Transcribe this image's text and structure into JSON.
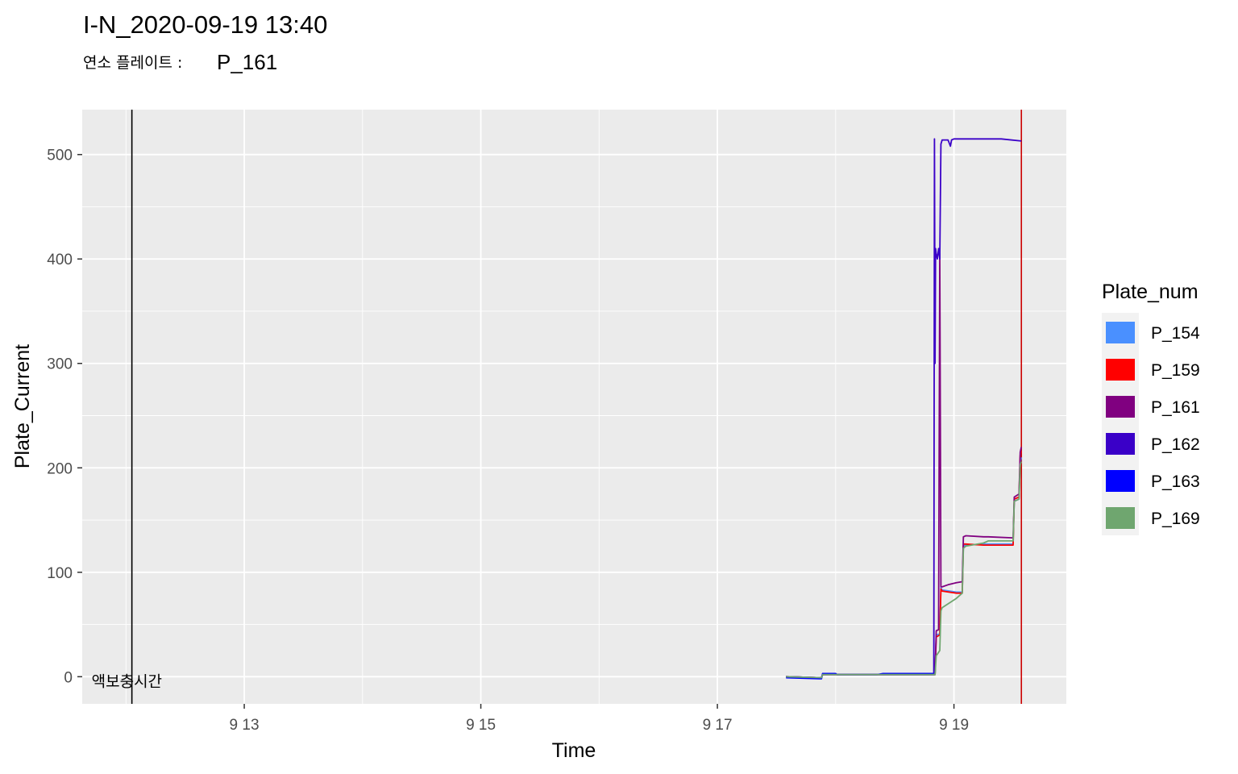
{
  "chart_data": {
    "type": "line",
    "title": "I-N_2020-09-19 13:40",
    "subtitle_prefix": "연소 플레이트 :",
    "subtitle_value": "P_161",
    "xlabel": "Time",
    "ylabel": "Plate_Current",
    "x_unit": "days (September 2020)",
    "xlim": [
      11.63,
      19.95
    ],
    "ylim": [
      -26,
      543
    ],
    "x_ticks": [
      13,
      15,
      17,
      19
    ],
    "x_tick_labels": [
      "9 13",
      "9 15",
      "9 17",
      "9 19"
    ],
    "y_ticks": [
      0,
      100,
      200,
      300,
      400,
      500
    ],
    "y_tick_labels": [
      "0",
      "100",
      "200",
      "300",
      "400",
      "500"
    ],
    "grid": true,
    "legend": {
      "title": "Plate_num",
      "position": "right"
    },
    "vlines": [
      {
        "x": 12.05,
        "color": "#000000",
        "label": "액보충시간"
      },
      {
        "x": 19.57,
        "color": "#cc0000",
        "label": ""
      }
    ],
    "series": [
      {
        "name": "P_154",
        "color": "#4a90ff",
        "x": [
          17.58,
          17.88,
          17.89,
          18.0,
          18.01,
          18.35,
          18.4,
          18.84,
          18.85,
          18.88,
          18.89,
          18.9,
          19.02,
          19.07,
          19.08,
          19.1,
          19.25,
          19.29,
          19.5,
          19.51,
          19.55,
          19.56,
          19.57
        ],
        "y": [
          0,
          -1,
          2,
          2,
          2,
          2,
          2,
          2,
          40,
          41,
          85,
          83,
          81,
          81,
          125,
          126,
          127,
          127,
          127,
          168,
          170,
          205,
          210
        ]
      },
      {
        "name": "P_159",
        "color": "#ff0000",
        "x": [
          17.58,
          17.88,
          17.89,
          18.0,
          18.01,
          18.35,
          18.4,
          18.84,
          18.85,
          18.88,
          18.89,
          18.9,
          19.02,
          19.07,
          19.08,
          19.1,
          19.25,
          19.29,
          19.5,
          19.51,
          19.55,
          19.56,
          19.57
        ],
        "y": [
          0,
          -1,
          2,
          2,
          2,
          2,
          2,
          2,
          38,
          40,
          84,
          82,
          80,
          80,
          127,
          127,
          126,
          126,
          126,
          170,
          172,
          212,
          216
        ]
      },
      {
        "name": "P_161",
        "color": "#800080",
        "x": [
          17.58,
          17.88,
          17.89,
          18.0,
          18.01,
          18.35,
          18.4,
          18.84,
          18.85,
          18.87,
          18.88,
          18.89,
          18.9,
          18.95,
          19.02,
          19.07,
          19.08,
          19.1,
          19.25,
          19.29,
          19.5,
          19.51,
          19.55,
          19.56,
          19.57
        ],
        "y": [
          0,
          -1,
          2,
          2,
          2,
          2,
          2,
          2,
          44,
          45,
          405,
          86,
          86,
          88,
          90,
          91,
          134,
          135,
          134,
          134,
          133,
          172,
          175,
          215,
          220
        ]
      },
      {
        "name": "P_162",
        "color": "#3a00c8",
        "x": [
          17.58,
          17.88,
          17.89,
          18.0,
          18.01,
          18.35,
          18.4,
          18.83,
          18.835,
          18.84,
          18.845,
          18.85,
          18.86,
          18.87,
          18.88,
          18.89,
          18.9,
          18.95,
          18.97,
          18.98,
          19.0,
          19.1,
          19.4,
          19.57
        ],
        "y": [
          0,
          -1,
          3,
          3,
          2,
          2,
          2,
          2,
          515,
          300,
          410,
          405,
          400,
          410,
          400,
          510,
          514,
          514,
          508,
          514,
          515,
          515,
          515,
          513
        ]
      },
      {
        "name": "P_163",
        "color": "#0000ff",
        "x": [
          17.58,
          17.88,
          17.89,
          18.0,
          18.01,
          18.35,
          18.4,
          18.83
        ],
        "y": [
          -1,
          -2,
          3,
          3,
          2,
          2,
          3,
          3
        ]
      },
      {
        "name": "P_169",
        "color": "#6fa66f",
        "x": [
          17.58,
          17.88,
          17.89,
          18.0,
          18.01,
          18.35,
          18.4,
          18.84,
          18.85,
          18.88,
          18.89,
          18.9,
          19.02,
          19.07,
          19.08,
          19.1,
          19.25,
          19.29,
          19.5,
          19.51,
          19.55,
          19.56,
          19.57
        ],
        "y": [
          0,
          -1,
          2,
          2,
          2,
          2,
          2,
          2,
          20,
          25,
          63,
          66,
          75,
          80,
          123,
          125,
          128,
          130,
          130,
          168,
          170,
          203,
          206
        ]
      }
    ]
  }
}
